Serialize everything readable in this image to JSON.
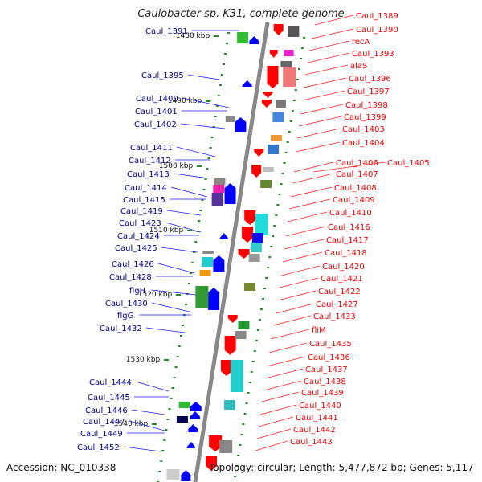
{
  "title": "Caulobacter sp. K31, complete genome",
  "footer": {
    "accession": "Accession: NC_010338",
    "topology": "Topology: circular; Length: 5,477,872 bp; Genes: 5,117"
  },
  "colors": {
    "backbone": "#888888",
    "forward_gene": "#ff0000",
    "reverse_gene": "#0000ff",
    "left_label": "#00008b",
    "right_label": "#ee0000",
    "tick": "#228b22"
  },
  "axis_labels": [
    "1480 kbp",
    "1490 kbp",
    "1500 kbp",
    "1510 kbp",
    "1520 kbp",
    "1530 kbp",
    "1540 kbp"
  ],
  "left_genes": [
    "Caul_1391",
    "Caul_1395",
    "Caul_1400",
    "Caul_1401",
    "Caul_1402",
    "Caul_1411",
    "Caul_1412",
    "Caul_1413",
    "Caul_1414",
    "Caul_1415",
    "Caul_1419",
    "Caul_1423",
    "Caul_1424",
    "Caul_1425",
    "Caul_1426",
    "Caul_1428",
    "flgH",
    "Caul_1430",
    "flgG",
    "Caul_1432",
    "Caul_1444",
    "Caul_1445",
    "Caul_1446",
    "Caul_1447",
    "Caul_1449",
    "Caul_1452"
  ],
  "right_genes": [
    "Caul_1389",
    "Caul_1390",
    "recA",
    "Caul_1393",
    "alaS",
    "Caul_1396",
    "Caul_1397",
    "Caul_1398",
    "Caul_1399",
    "Caul_1403",
    "Caul_1404",
    "Caul_1406",
    "Caul_1405",
    "Caul_1407",
    "Caul_1408",
    "Caul_1409",
    "Caul_1410",
    "Caul_1416",
    "Caul_1417",
    "Caul_1418",
    "Caul_1420",
    "Caul_1421",
    "Caul_1422",
    "Caul_1427",
    "Caul_1433",
    "fliM",
    "Caul_1435",
    "Caul_1436",
    "Caul_1437",
    "Caul_1438",
    "Caul_1439",
    "Caul_1440",
    "Caul_1441",
    "Caul_1442",
    "Caul_1443"
  ]
}
